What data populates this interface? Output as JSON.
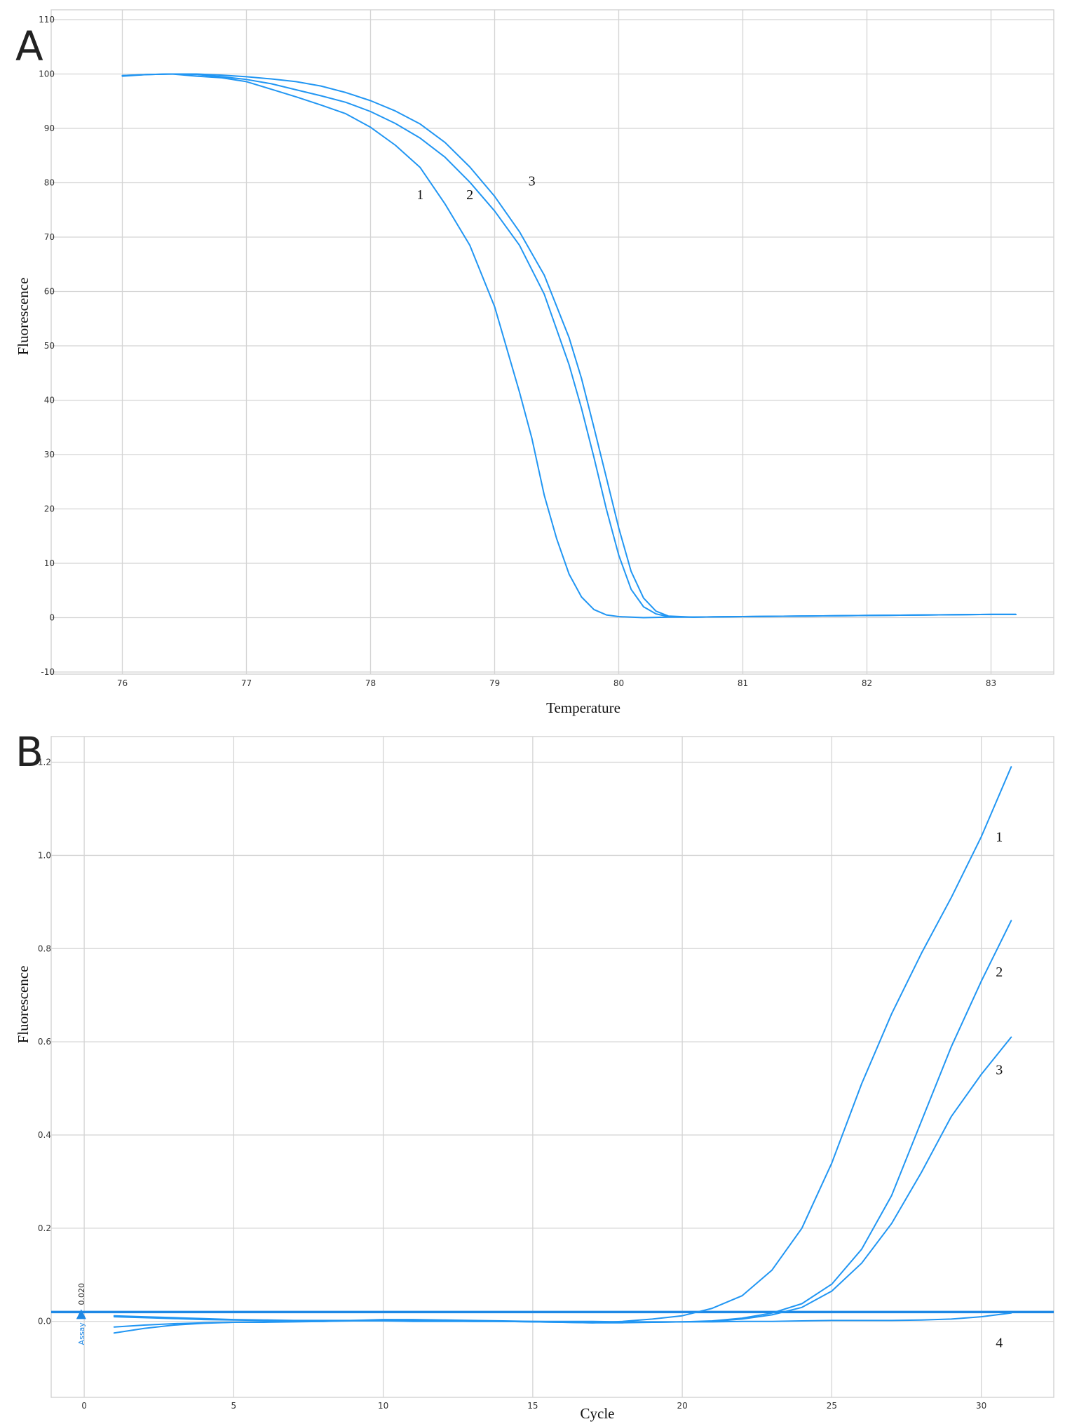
{
  "chart_data": [
    {
      "panel": "A",
      "type": "line",
      "title": "",
      "xlabel": "Temperature",
      "ylabel": "Fluorescence",
      "xlim": [
        75.5,
        83.5
      ],
      "ylim": [
        -10,
        110
      ],
      "xticks": [
        76,
        77,
        78,
        79,
        80,
        81,
        82,
        83
      ],
      "yticks": [
        -10,
        0,
        10,
        20,
        30,
        40,
        50,
        60,
        70,
        80,
        90,
        100,
        110
      ],
      "grid": true,
      "color": "#2196f3",
      "series": [
        {
          "label": "1",
          "label_pos": [
            78.4,
            77
          ],
          "x": [
            76,
            76.2,
            76.4,
            76.6,
            76.8,
            77,
            77.2,
            77.4,
            77.6,
            77.8,
            78,
            78.2,
            78.4,
            78.6,
            78.8,
            79,
            79.2,
            79.3,
            79.4,
            79.5,
            79.6,
            79.7,
            79.8,
            79.9,
            80,
            80.2,
            80.4,
            80.6,
            81,
            81.5,
            82,
            82.5,
            83,
            83.2
          ],
          "y": [
            99.6,
            99.9,
            100,
            99.6,
            99.3,
            98.6,
            97.2,
            95.8,
            94.3,
            92.7,
            90.2,
            86.9,
            82.8,
            76.1,
            68.5,
            57.2,
            41.5,
            33,
            22.5,
            14.5,
            8,
            3.8,
            1.5,
            0.5,
            0.2,
            0,
            0.1,
            0.1,
            0.2,
            0.3,
            0.4,
            0.5,
            0.6,
            0.6
          ]
        },
        {
          "label": "2",
          "label_pos": [
            78.8,
            77
          ],
          "x": [
            76,
            76.2,
            76.4,
            76.6,
            76.8,
            77,
            77.2,
            77.4,
            77.6,
            77.8,
            78,
            78.2,
            78.4,
            78.6,
            78.8,
            79,
            79.2,
            79.4,
            79.6,
            79.7,
            79.8,
            79.9,
            80,
            80.1,
            80.2,
            80.3,
            80.4,
            80.6,
            81,
            81.5,
            82,
            82.5,
            83,
            83.2
          ],
          "y": [
            99.7,
            99.9,
            100,
            99.9,
            99.5,
            99,
            98.2,
            97.1,
            96,
            94.8,
            93.1,
            90.9,
            88.2,
            84.7,
            80.1,
            74.8,
            68.5,
            59.5,
            46.5,
            38.5,
            29.5,
            20,
            11.5,
            5.2,
            2,
            0.7,
            0.2,
            0.1,
            0.2,
            0.3,
            0.4,
            0.5,
            0.6,
            0.6
          ]
        },
        {
          "label": "3",
          "label_pos": [
            79.3,
            79.5
          ],
          "x": [
            76,
            76.2,
            76.4,
            76.6,
            76.8,
            77,
            77.2,
            77.4,
            77.6,
            77.8,
            78,
            78.2,
            78.4,
            78.6,
            78.8,
            79,
            79.2,
            79.4,
            79.6,
            79.7,
            79.8,
            79.9,
            80,
            80.1,
            80.2,
            80.3,
            80.4,
            80.6,
            81,
            81.5,
            82,
            82.5,
            83,
            83.2
          ],
          "y": [
            99.7,
            99.9,
            100,
            100,
            99.8,
            99.5,
            99.1,
            98.6,
            97.8,
            96.6,
            95.1,
            93.2,
            90.8,
            87.4,
            82.9,
            77.5,
            71,
            63,
            51.5,
            44,
            35,
            25.8,
            16.5,
            8.5,
            3.6,
            1.2,
            0.3,
            0.1,
            0.2,
            0.3,
            0.4,
            0.5,
            0.6,
            0.6
          ]
        }
      ]
    },
    {
      "panel": "B",
      "type": "line",
      "title": "",
      "xlabel": "Cycle",
      "ylabel": "Fluorescence",
      "xlim": [
        -0.8,
        32.4
      ],
      "ylim": [
        -0.16,
        1.24
      ],
      "xticks": [
        0,
        5,
        10,
        15,
        20,
        25,
        30
      ],
      "yticks": [
        0.0,
        0.2,
        0.4,
        0.6,
        0.8,
        1.0,
        1.2
      ],
      "ytick_labels": [
        "0.0",
        "0.2",
        "0.4",
        "0.6",
        "0.8",
        "1.0",
        "1.2"
      ],
      "grid": true,
      "color": "#2196f3",
      "threshold": {
        "value": 0.02,
        "label": "0.020",
        "name": "Assay"
      },
      "series": [
        {
          "label": "1",
          "label_pos": [
            30.6,
            1.03
          ],
          "x": [
            1,
            2,
            3,
            4,
            5,
            6,
            7,
            8,
            9,
            10,
            11,
            12,
            13,
            14,
            15,
            16,
            17,
            18,
            19,
            20,
            21,
            22,
            23,
            24,
            25,
            26,
            27,
            28,
            29,
            30,
            31
          ],
          "y": [
            0.012,
            0.01,
            0.008,
            0.006,
            0.004,
            0.003,
            0.002,
            0.002,
            0.002,
            0.002,
            0.001,
            0.001,
            0,
            0,
            -0.001,
            -0.002,
            -0.003,
            0,
            0.005,
            0.012,
            0.028,
            0.055,
            0.11,
            0.2,
            0.34,
            0.51,
            0.66,
            0.79,
            0.91,
            1.04,
            1.19
          ]
        },
        {
          "label": "2",
          "label_pos": [
            30.6,
            0.74
          ],
          "x": [
            1,
            2,
            3,
            4,
            5,
            6,
            7,
            8,
            9,
            10,
            11,
            12,
            13,
            14,
            15,
            16,
            17,
            18,
            19,
            20,
            21,
            22,
            23,
            24,
            25,
            26,
            27,
            28,
            29,
            30,
            31
          ],
          "y": [
            -0.012,
            -0.008,
            -0.005,
            -0.003,
            -0.002,
            -0.002,
            -0.001,
            0,
            0.002,
            0.004,
            0.004,
            0.003,
            0.002,
            0.001,
            0,
            -0.001,
            -0.002,
            -0.002,
            -0.002,
            -0.001,
            0.001,
            0.007,
            0.018,
            0.038,
            0.08,
            0.155,
            0.27,
            0.43,
            0.59,
            0.73,
            0.86
          ]
        },
        {
          "label": "3",
          "label_pos": [
            30.6,
            0.53
          ],
          "x": [
            1,
            2,
            3,
            4,
            5,
            6,
            7,
            8,
            9,
            10,
            11,
            12,
            13,
            14,
            15,
            16,
            17,
            18,
            19,
            20,
            21,
            22,
            23,
            24,
            25,
            26,
            27,
            28,
            29,
            30,
            31
          ],
          "y": [
            -0.025,
            -0.015,
            -0.008,
            -0.004,
            -0.002,
            -0.001,
            0,
            0,
            0.001,
            0.002,
            0.003,
            0.002,
            0.001,
            0,
            -0.001,
            -0.002,
            -0.003,
            -0.003,
            -0.002,
            -0.001,
            0,
            0.005,
            0.014,
            0.03,
            0.065,
            0.125,
            0.21,
            0.32,
            0.44,
            0.53,
            0.61
          ]
        },
        {
          "label": "4",
          "label_pos": [
            30.6,
            -0.055
          ],
          "x": [
            1,
            2,
            3,
            4,
            5,
            6,
            7,
            8,
            9,
            10,
            11,
            12,
            13,
            14,
            15,
            16,
            17,
            18,
            19,
            20,
            21,
            22,
            23,
            24,
            25,
            26,
            27,
            28,
            29,
            30,
            31
          ],
          "y": [
            0.01,
            0.008,
            0.006,
            0.004,
            0.003,
            0.002,
            0.001,
            0.001,
            0.001,
            0.001,
            0,
            0,
            0,
            0,
            0,
            0,
            0,
            -0.001,
            -0.001,
            -0.001,
            -0.001,
            0,
            0,
            0.001,
            0.002,
            0.002,
            0.002,
            0.003,
            0.005,
            0.01,
            0.018
          ]
        }
      ]
    }
  ]
}
